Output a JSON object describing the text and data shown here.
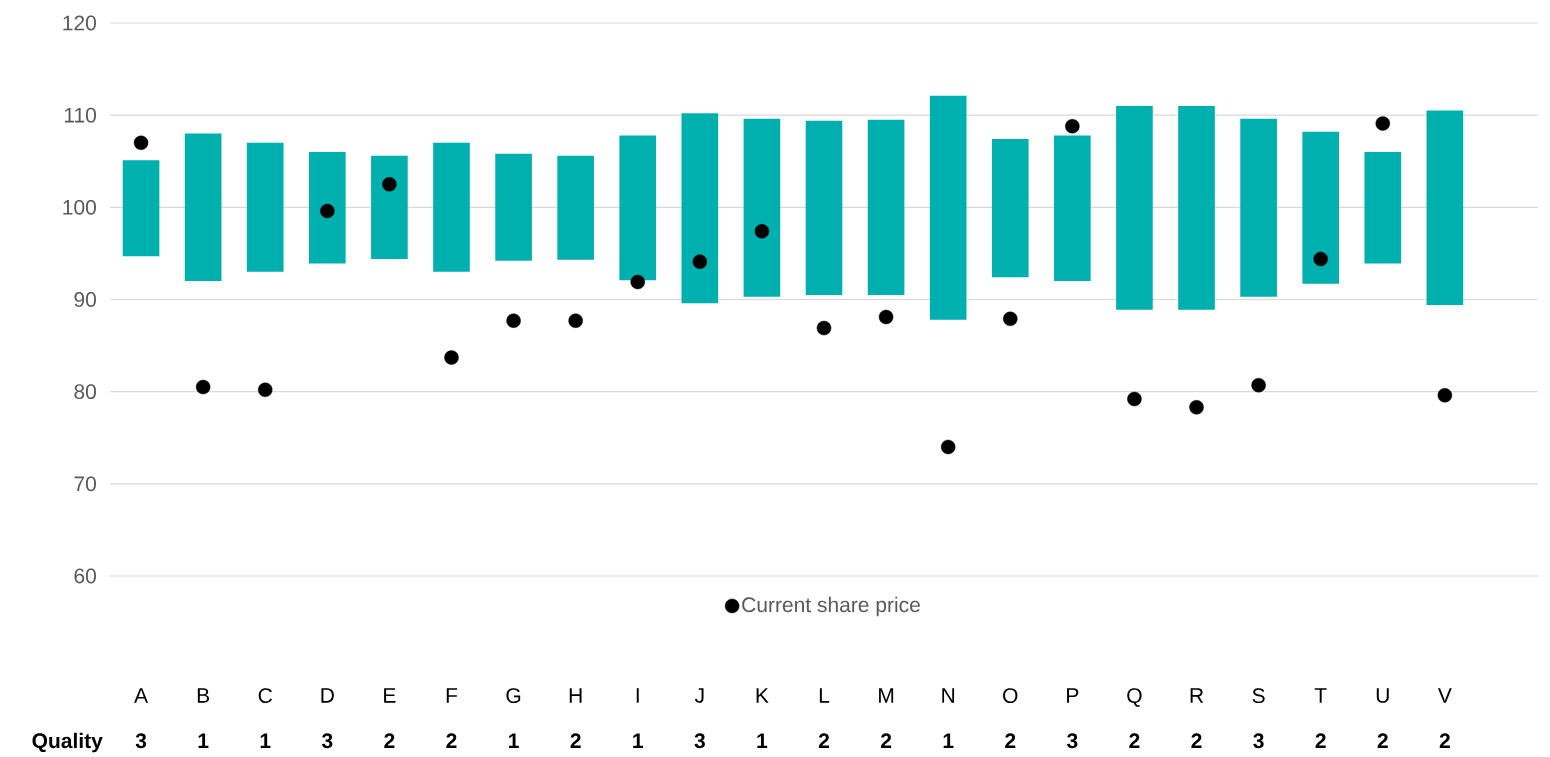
{
  "chart_data": {
    "type": "bar",
    "categories": [
      "A",
      "B",
      "C",
      "D",
      "E",
      "F",
      "G",
      "H",
      "I",
      "J",
      "K",
      "L",
      "M",
      "N",
      "O",
      "P",
      "Q",
      "R",
      "S",
      "T",
      "U",
      "V"
    ],
    "series": [
      {
        "color": "#00b0ae",
        "base": [
          94.7,
          92.0,
          93.0,
          93.9,
          94.4,
          93.0,
          94.2,
          94.3,
          92.1,
          89.6,
          90.3,
          90.5,
          90.5,
          87.8,
          92.4,
          92.0,
          88.9,
          88.9,
          90.3,
          91.7,
          93.9,
          89.4
        ],
        "values": [
          10.4,
          16.0,
          14.0,
          12.1,
          11.2,
          14.0,
          11.6,
          11.3,
          15.7,
          20.6,
          19.3,
          18.9,
          19.0,
          24.3,
          15.0,
          15.8,
          22.1,
          22.1,
          19.3,
          16.5,
          12.1,
          21.1
        ]
      },
      {
        "type": "scatter",
        "name": "Current share price",
        "color": "#000000",
        "x": [
          "A",
          "B",
          "C",
          "D",
          "E",
          "F",
          "G",
          "H",
          "I",
          "J",
          "K",
          "L",
          "M",
          "N",
          "O",
          "P",
          "Q",
          "R",
          "S",
          "T",
          "U",
          "V"
        ],
        "values": [
          107.0,
          80.5,
          80.2,
          99.6,
          102.5,
          83.7,
          87.7,
          87.7,
          91.9,
          94.1,
          97.4,
          86.9,
          88.1,
          74.0,
          87.9,
          108.8,
          79.2,
          78.3,
          80.7,
          94.4,
          109.1,
          79.6
        ]
      }
    ],
    "ylim": [
      60,
      120
    ],
    "yticks": [
      60,
      70,
      80,
      90,
      100,
      110,
      120
    ],
    "grid": "y",
    "legend": "bottom",
    "marker": "circle",
    "annotations": [
      "Quality",
      "3",
      "1",
      "1",
      "3",
      "2",
      "2",
      "1",
      "2",
      "1",
      "3",
      "1",
      "2",
      "2",
      "1",
      "2",
      "3",
      "2",
      "2",
      "3",
      "2",
      "2",
      "2"
    ]
  }
}
